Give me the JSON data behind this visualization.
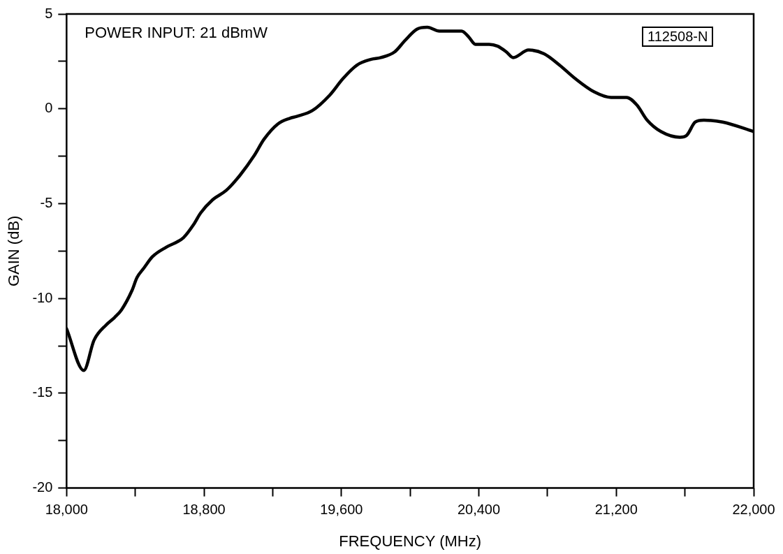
{
  "chart_data": {
    "type": "line",
    "xlabel": "FREQUENCY (MHz)",
    "ylabel": "GAIN (dB)",
    "annotations": [
      "POWER INPUT: 21 dBmW",
      "112508-N"
    ],
    "xlim": [
      18000,
      22000
    ],
    "ylim": [
      -20,
      5
    ],
    "xticks": [
      {
        "value": 18000,
        "label": "18,000"
      },
      {
        "value": 18400,
        "label": null
      },
      {
        "value": 18800,
        "label": "18,800"
      },
      {
        "value": 19200,
        "label": null
      },
      {
        "value": 19600,
        "label": "19,600"
      },
      {
        "value": 20000,
        "label": null
      },
      {
        "value": 20400,
        "label": "20,400"
      },
      {
        "value": 20800,
        "label": null
      },
      {
        "value": 21200,
        "label": "21,200"
      },
      {
        "value": 21600,
        "label": null
      },
      {
        "value": 22000,
        "label": "22,000"
      }
    ],
    "yticks": [
      -20,
      {
        "value": -17.5,
        "label": null
      },
      -15,
      {
        "value": -12.5,
        "label": null
      },
      -10,
      {
        "value": -7.5,
        "label": null
      },
      -5,
      {
        "value": -2.5,
        "label": null
      },
      0,
      {
        "value": 2.5,
        "label": null
      },
      5
    ],
    "legend": false,
    "marker": "none",
    "line_style": "solid",
    "series": [
      {
        "color": "#000000",
        "x": [
          18000,
          18100,
          18160,
          18230,
          18280,
          18320,
          18380,
          18410,
          18450,
          18500,
          18580,
          18680,
          18740,
          18780,
          18850,
          18930,
          19010,
          19090,
          19150,
          19230,
          19300,
          19340,
          19430,
          19530,
          19610,
          19690,
          19770,
          19830,
          19910,
          19970,
          20040,
          20100,
          20170,
          20220,
          20300,
          20340,
          20380,
          20460,
          20510,
          20560,
          20600,
          20690,
          20780,
          20870,
          20960,
          21070,
          21170,
          21260,
          21320,
          21380,
          21460,
          21570,
          21610,
          21660,
          21710,
          21820,
          22000
        ],
        "values": [
          -11.6,
          -13.8,
          -12.2,
          -11.4,
          -11.0,
          -10.6,
          -9.6,
          -8.9,
          -8.4,
          -7.8,
          -7.3,
          -6.8,
          -6.1,
          -5.5,
          -4.8,
          -4.3,
          -3.5,
          -2.5,
          -1.6,
          -0.8,
          -0.5,
          -0.4,
          -0.1,
          0.7,
          1.6,
          2.3,
          2.6,
          2.7,
          3.0,
          3.6,
          4.2,
          4.3,
          4.1,
          4.1,
          4.1,
          3.8,
          3.4,
          3.4,
          3.3,
          3.0,
          2.7,
          3.1,
          2.9,
          2.3,
          1.6,
          0.9,
          0.6,
          0.6,
          0.2,
          -0.6,
          -1.2,
          -1.5,
          -1.4,
          -0.7,
          -0.6,
          -0.7,
          -1.2
        ]
      }
    ]
  }
}
